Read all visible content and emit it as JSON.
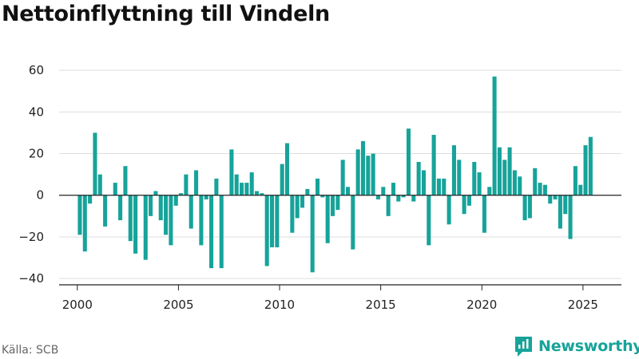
{
  "title": "Nettoinflyttning till Vindeln",
  "source": "Källa: SCB",
  "brand": "Newsworthy",
  "colors": {
    "bar": "#16a39a",
    "brand": "#16a39a",
    "grid": "#dddddd",
    "axis": "#222222"
  },
  "chart_data": {
    "type": "bar",
    "title": "Nettoinflyttning till Vindeln",
    "xlabel": "",
    "ylabel": "",
    "ylim": [
      -43,
      70
    ],
    "xlim": [
      1999.1,
      2026.9
    ],
    "yticks": [
      -40,
      -20,
      0,
      20,
      40,
      60
    ],
    "xticks": [
      2000,
      2005,
      2010,
      2015,
      2020,
      2025
    ],
    "grid": "horizontal",
    "x": [
      2000.125,
      2000.375,
      2000.625,
      2000.875,
      2001.125,
      2001.375,
      2001.625,
      2001.875,
      2002.125,
      2002.375,
      2002.625,
      2002.875,
      2003.125,
      2003.375,
      2003.625,
      2003.875,
      2004.125,
      2004.375,
      2004.625,
      2004.875,
      2005.125,
      2005.375,
      2005.625,
      2005.875,
      2006.125,
      2006.375,
      2006.625,
      2006.875,
      2007.125,
      2007.375,
      2007.625,
      2007.875,
      2008.125,
      2008.375,
      2008.625,
      2008.875,
      2009.125,
      2009.375,
      2009.625,
      2009.875,
      2010.125,
      2010.375,
      2010.625,
      2010.875,
      2011.125,
      2011.375,
      2011.625,
      2011.875,
      2012.125,
      2012.375,
      2012.625,
      2012.875,
      2013.125,
      2013.375,
      2013.625,
      2013.875,
      2014.125,
      2014.375,
      2014.625,
      2014.875,
      2015.125,
      2015.375,
      2015.625,
      2015.875,
      2016.125,
      2016.375,
      2016.625,
      2016.875,
      2017.125,
      2017.375,
      2017.625,
      2017.875,
      2018.125,
      2018.375,
      2018.625,
      2018.875,
      2019.125,
      2019.375,
      2019.625,
      2019.875,
      2020.125,
      2020.375,
      2020.625,
      2020.875,
      2021.125,
      2021.375,
      2021.625,
      2021.875,
      2022.125,
      2022.375,
      2022.625,
      2022.875,
      2023.125,
      2023.375,
      2023.625,
      2023.875,
      2024.125,
      2024.375,
      2024.625,
      2024.875,
      2025.125,
      2025.375
    ],
    "values": [
      -19,
      -27,
      -4,
      30,
      10,
      -15,
      0,
      6,
      -12,
      14,
      -22,
      -28,
      0,
      -31,
      -10,
      2,
      -12,
      -19,
      -24,
      -5,
      1,
      10,
      -16,
      12,
      -24,
      -2,
      -35,
      8,
      -35,
      0,
      22,
      10,
      6,
      6,
      11,
      2,
      1,
      -34,
      -25,
      -25,
      15,
      25,
      -18,
      -11,
      -6,
      3,
      -37,
      8,
      -1,
      -23,
      -10,
      -7,
      17,
      4,
      -26,
      22,
      26,
      19,
      20,
      -2,
      4,
      -10,
      6,
      -3,
      -1,
      32,
      -3,
      16,
      12,
      -24,
      29,
      8,
      8,
      -14,
      24,
      17,
      -9,
      -5,
      16,
      11,
      -18,
      4,
      57,
      23,
      17,
      23,
      12,
      9,
      -12,
      -11,
      13,
      6,
      5,
      -4,
      -2,
      -16,
      -9,
      -21,
      14,
      5,
      24,
      28
    ]
  }
}
